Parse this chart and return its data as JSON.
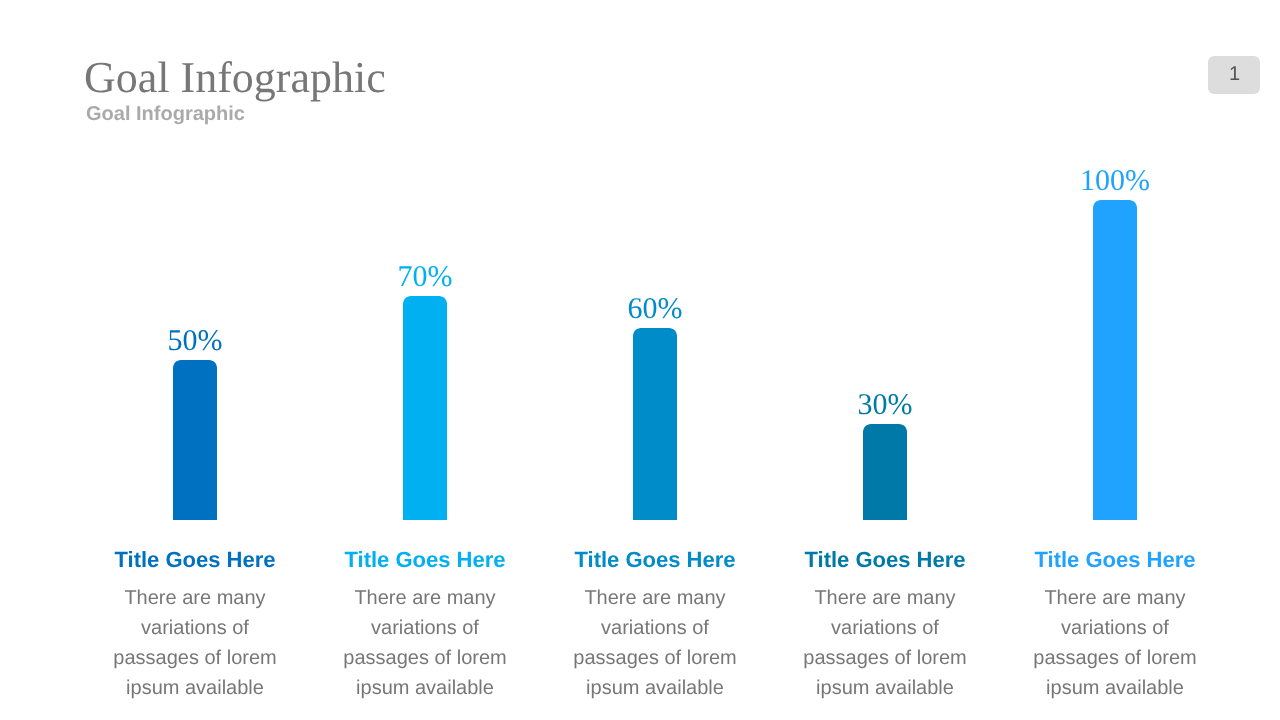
{
  "chart_data": {
    "type": "bar",
    "title": "Goal Infographic",
    "subtitle": "Goal Infographic",
    "categories": [
      "Title Goes Here",
      "Title Goes Here",
      "Title Goes Here",
      "Title Goes Here",
      "Title Goes Here"
    ],
    "values": [
      50,
      70,
      60,
      30,
      100
    ],
    "colors": [
      "#0070c0",
      "#00b0f0",
      "#008cc8",
      "#0079a8",
      "#1fa3ff"
    ],
    "value_labels": [
      "50%",
      "70%",
      "60%",
      "30%",
      "100%"
    ],
    "ylim": [
      0,
      100
    ],
    "tick_labels": "x",
    "grid": false,
    "annotations": [
      "1",
      "There are many variations of passages of lorem ipsum available",
      "There are many variations of passages of lorem ipsum available",
      "There are many variations of passages of lorem ipsum available",
      "There are many variations of passages of lorem ipsum available",
      "There are many variations of passages of lorem ipsum available"
    ]
  }
}
